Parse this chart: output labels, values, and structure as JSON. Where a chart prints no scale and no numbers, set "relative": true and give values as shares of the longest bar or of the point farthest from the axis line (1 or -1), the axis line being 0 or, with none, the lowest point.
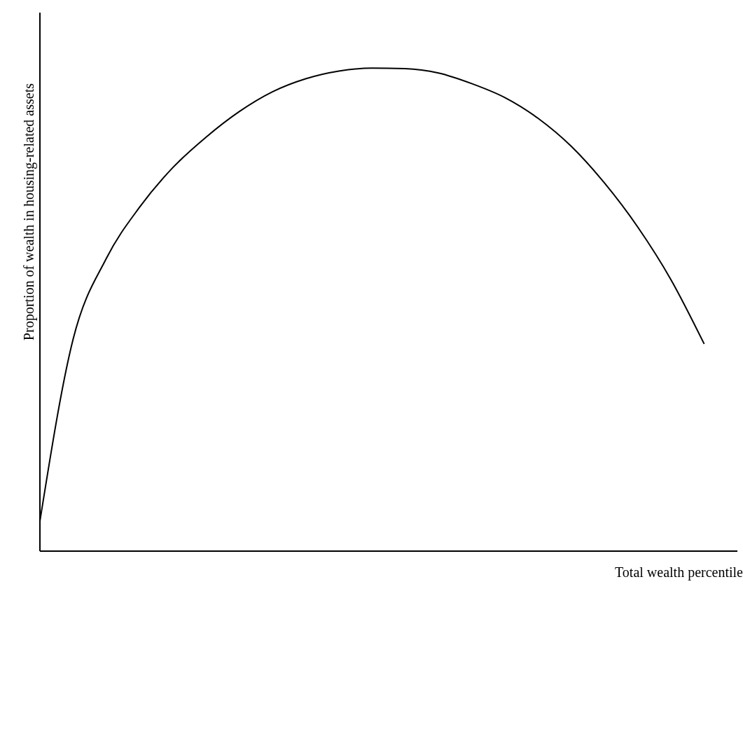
{
  "chart_data": {
    "type": "line",
    "relative": true,
    "xlabel": "Total wealth percentile",
    "ylabel": "Proportion of wealth in housing-related assets",
    "categories": [
      null,
      null,
      null,
      null,
      null,
      null,
      null,
      null,
      null,
      null,
      null,
      null,
      null,
      null,
      null,
      null,
      null,
      null,
      null,
      null,
      null,
      null
    ],
    "series": [
      {
        "color": "#000000",
        "values": [
          0.062,
          0.439,
          0.606,
          0.712,
          0.794,
          0.857,
          0.91,
          0.951,
          0.978,
          0.994,
          1,
          0.999,
          0.99,
          0.968,
          0.939,
          0.896,
          0.838,
          0.762,
          0.671,
          0.562,
          0.429,
          null
        ]
      }
    ],
    "marker": "none",
    "line_style": "solid",
    "grid": false,
    "legend": false
  }
}
